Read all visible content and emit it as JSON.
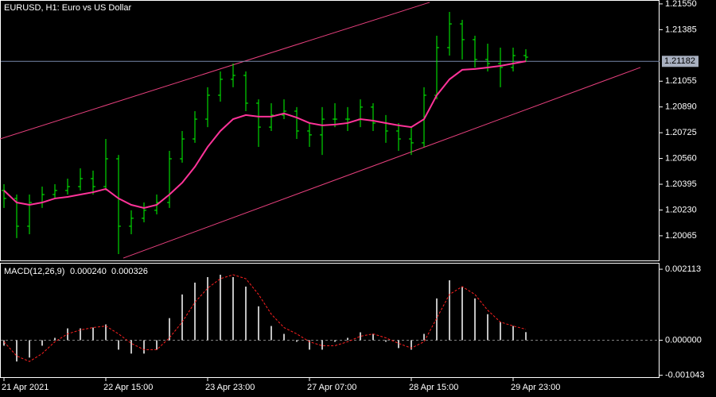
{
  "chart_data": [
    {
      "type": "ohlc",
      "title": "EURUSD, H1:  Euro vs US Dollar",
      "categories": [
        "21 Apr 2021",
        null,
        null,
        null,
        null,
        null,
        null,
        null,
        "22 Apr 15:00",
        null,
        null,
        null,
        null,
        null,
        null,
        null,
        "23 Apr 23:00",
        null,
        null,
        null,
        null,
        null,
        null,
        null,
        "27 Apr 07:00",
        null,
        null,
        null,
        null,
        null,
        null,
        null,
        "28 Apr 15:00",
        null,
        null,
        null,
        null,
        null,
        null,
        null,
        "29 Apr 23:00",
        null
      ],
      "color": "#00ff00",
      "ohlc": {
        "open": [
          1.20355,
          1.20304,
          1.20126,
          1.20278,
          1.20329,
          1.20355,
          1.2038,
          1.20431,
          1.2038,
          1.20558,
          1.20126,
          1.20177,
          1.20228,
          1.20278,
          1.20558,
          1.20685,
          1.20812,
          1.20965,
          1.21067,
          1.21092,
          1.20914,
          1.20761,
          1.20838,
          1.20863,
          1.20736,
          1.20711,
          1.20812,
          1.20812,
          1.20812,
          1.20889,
          1.20787,
          1.20736,
          1.20685,
          1.2066,
          1.20965,
          1.2127,
          1.21422,
          1.21321,
          1.21194,
          1.21168,
          1.21143,
          1.21219
        ],
        "high": [
          1.20395,
          1.20329,
          1.20329,
          1.2038,
          1.20395,
          1.20431,
          1.20497,
          1.20482,
          1.20685,
          1.20583,
          1.20228,
          1.20278,
          1.20329,
          1.20609,
          1.20736,
          1.20863,
          1.21016,
          1.21117,
          1.21168,
          1.21117,
          1.20939,
          1.20914,
          1.20939,
          1.20889,
          1.20787,
          1.20889,
          1.20914,
          1.20889,
          1.20939,
          1.20914,
          1.20838,
          1.20787,
          1.20761,
          1.21016,
          1.21346,
          1.21499,
          1.21448,
          1.21346,
          1.21295,
          1.2127,
          1.2127,
          1.2126
        ],
        "low": [
          1.20243,
          1.2005,
          1.20075,
          1.20243,
          1.20304,
          1.20329,
          1.20355,
          1.20329,
          1.20355,
          1.19948,
          1.20075,
          1.20151,
          1.20202,
          1.20243,
          1.20533,
          1.2066,
          1.20761,
          1.20924,
          1.21016,
          1.20863,
          1.20634,
          1.20736,
          1.20812,
          1.20685,
          1.20634,
          1.20583,
          1.20761,
          1.20736,
          1.20761,
          1.20736,
          1.2066,
          1.20609,
          1.20583,
          1.20634,
          1.20939,
          1.21219,
          1.21194,
          1.21143,
          1.21117,
          1.21016,
          1.21117,
          1.21178
        ],
        "close": [
          1.20304,
          1.20126,
          1.20278,
          1.20329,
          1.20355,
          1.2038,
          1.20431,
          1.2038,
          1.20558,
          1.20126,
          1.20177,
          1.20228,
          1.20278,
          1.20558,
          1.20685,
          1.20812,
          1.20965,
          1.21067,
          1.21092,
          1.20914,
          1.20761,
          1.20838,
          1.20863,
          1.20736,
          1.20711,
          1.20812,
          1.20812,
          1.20812,
          1.20889,
          1.20787,
          1.20736,
          1.20685,
          1.2066,
          1.20965,
          1.2127,
          1.21422,
          1.21321,
          1.21194,
          1.21168,
          1.21143,
          1.21219,
          1.21209
        ]
      },
      "moving_average": {
        "color": "#ff3399",
        "values": [
          1.20355,
          1.20278,
          1.20263,
          1.20278,
          1.20304,
          1.20314,
          1.20329,
          1.20344,
          1.20365,
          1.20304,
          1.20263,
          1.20243,
          1.20263,
          1.20329,
          1.20405,
          1.20507,
          1.20634,
          1.20736,
          1.20812,
          1.20838,
          1.20828,
          1.20828,
          1.20848,
          1.20822,
          1.20787,
          1.20772,
          1.20777,
          1.20787,
          1.20812,
          1.20802,
          1.20787,
          1.20772,
          1.20761,
          1.20812,
          1.20965,
          1.21067,
          1.21128,
          1.21133,
          1.21143,
          1.21153,
          1.21168,
          1.21183
        ]
      },
      "channels": [
        {
          "color": "#e8407e",
          "x": [
            -0.3125,
            33.44
          ],
          "y": [
            1.20685,
            1.2156
          ]
        },
        {
          "color": "#e8407e",
          "x": [
            9.375,
            50
          ],
          "y": [
            1.19922,
            1.21143
          ]
        }
      ],
      "current_price": {
        "value": 1.21182,
        "label": "1.21182",
        "color": "#7788aa"
      },
      "ylim": [
        1.19907,
        1.21575
      ],
      "yticks": [
        {
          "value": 1.2155,
          "label": "1.21550"
        },
        {
          "value": 1.21385,
          "label": "1.21385"
        },
        {
          "value": 1.21055,
          "label": "1.21055"
        },
        {
          "value": 1.2089,
          "label": "1.20890"
        },
        {
          "value": 1.20725,
          "label": "1.20725"
        },
        {
          "value": 1.2056,
          "label": "1.20560"
        },
        {
          "value": 1.20395,
          "label": "1.20395"
        },
        {
          "value": 1.2023,
          "label": "1.20230"
        },
        {
          "value": 1.20065,
          "label": "1.20065"
        }
      ]
    },
    {
      "type": "macd",
      "title": "MACD(12,26,9)",
      "histogram": {
        "color": "#c0c0c0",
        "current_label": "0.000240",
        "values": [
          -0.000164,
          -0.000634,
          -0.000517,
          -0.000164,
          7e-05,
          0.000352,
          0.000352,
          0.000376,
          0.000469,
          -0.000282,
          -0.000399,
          -0.000399,
          -0.000282,
          0.000657,
          0.001362,
          0.001714,
          0.001878,
          0.001949,
          0.001878,
          0.001596,
          0.001009,
          0.000423,
          0.000188,
          -4.7e-05,
          -0.000282,
          -0.000282,
          -4.7e-05,
          7e-05,
          0.000235,
          0.000188,
          -4.7e-05,
          -0.000235,
          -0.000282,
          0.000188,
          0.001244,
          0.001784,
          0.001596,
          0.001244,
          0.000775,
          0.00054,
          0.000423,
          0.00024
        ]
      },
      "signal": {
        "color": "#ff2020",
        "current_label": "0.000326",
        "values": [
          -4.7e-05,
          -0.00047,
          -0.000634,
          -0.000399,
          -4.7e-05,
          0.000188,
          0.000305,
          0.000376,
          0.000423,
          0.000188,
          -9.4e-05,
          -0.000282,
          -0.000282,
          7e-05,
          0.00054,
          0.001127,
          0.001549,
          0.001831,
          0.001949,
          0.001831,
          0.001362,
          0.000775,
          0.000376,
          0.000188,
          -4.7e-05,
          -0.000164,
          -0.000164,
          -4.7e-05,
          0.000117,
          0.000188,
          7e-05,
          -9.4e-05,
          -0.000235,
          -4.7e-05,
          0.000657,
          0.001362,
          0.001596,
          0.001362,
          0.000892,
          0.00054,
          0.000423,
          0.000326
        ]
      },
      "ylim": [
        -0.0011,
        0.00228
      ],
      "yticks": [
        {
          "value": 0.002113,
          "label": "0.002113"
        },
        {
          "value": 0,
          "label": "0.000000"
        },
        {
          "value": -0.001043,
          "label": "-0.001043"
        }
      ]
    }
  ]
}
